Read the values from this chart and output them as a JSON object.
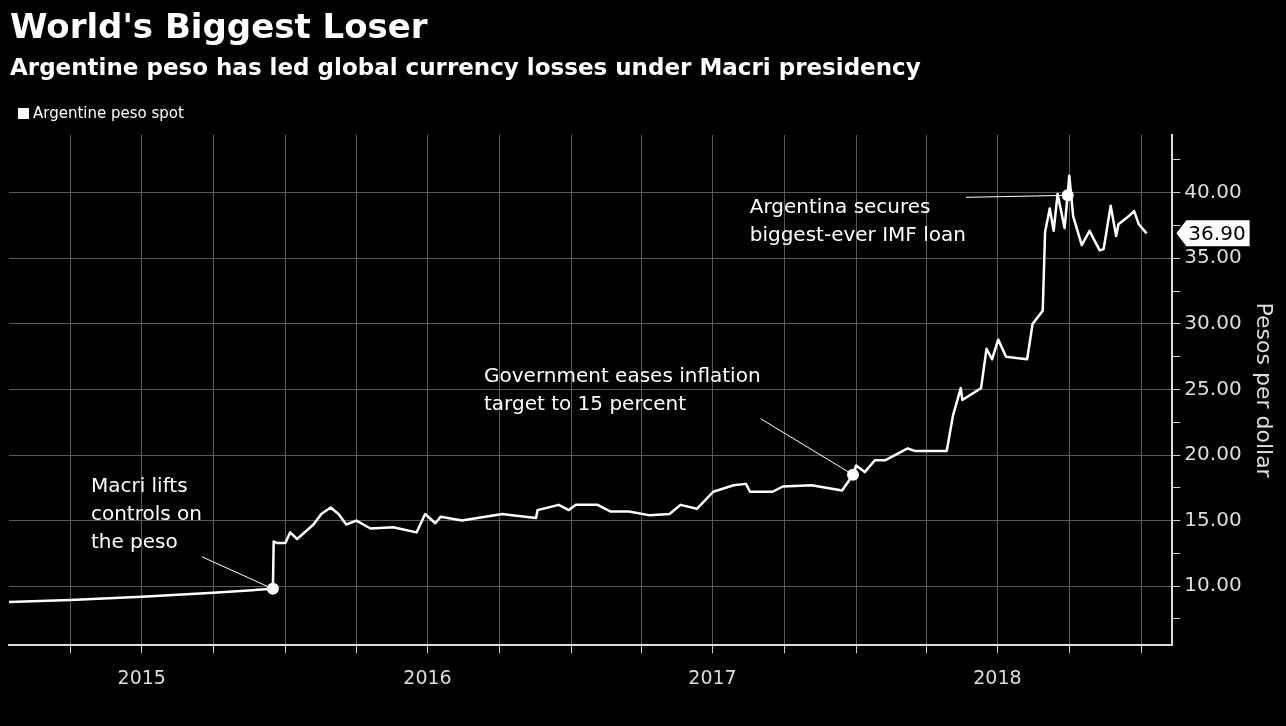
{
  "chart_data": {
    "type": "line",
    "title": "World's Biggest Loser",
    "subtitle": "Argentine peso has led global currency losses under Macri presidency",
    "ylabel": "Pesos per dollar",
    "legend": "top left",
    "grid": true,
    "marker": "none",
    "line_style": "solid",
    "x": [
      "2015-01-12",
      "2015-04-01",
      "2015-07-01",
      "2015-10-01",
      "2015-12-16",
      "2015-12-17",
      "2015-12-21",
      "2016-01-01",
      "2016-01-07",
      "2016-01-16",
      "2016-02-06",
      "2016-02-16",
      "2016-02-28",
      "2016-03-09",
      "2016-03-19",
      "2016-04-01",
      "2016-04-19",
      "2016-05-18",
      "2016-06-17",
      "2016-06-28",
      "2016-07-11",
      "2016-07-18",
      "2016-08-14",
      "2016-10-05",
      "2016-11-17",
      "2016-11-19",
      "2016-12-16",
      "2016-12-29",
      "2017-01-07",
      "2017-02-04",
      "2017-02-20",
      "2017-03-16",
      "2017-04-12",
      "2017-05-07",
      "2017-05-21",
      "2017-06-11",
      "2017-07-02",
      "2017-07-28",
      "2017-08-13",
      "2017-08-18",
      "2017-09-16",
      "2017-09-29",
      "2017-11-05",
      "2017-12-14",
      "2017-12-28",
      "2018-01-01",
      "2018-01-12",
      "2018-01-25",
      "2018-02-07",
      "2018-03-08",
      "2018-03-18",
      "2018-04-27",
      "2018-05-05",
      "2018-05-15",
      "2018-05-17",
      "2018-06-10",
      "2018-06-17",
      "2018-06-24",
      "2018-07-02",
      "2018-07-12",
      "2018-08-08",
      "2018-08-15",
      "2018-08-28",
      "2018-08-31",
      "2018-09-06",
      "2018-09-11",
      "2018-09-16",
      "2018-09-25",
      "2018-10-01",
      "2018-10-06",
      "2018-10-17",
      "2018-10-27",
      "2018-11-01",
      "2018-11-09",
      "2018-11-14",
      "2018-11-23",
      "2018-11-30",
      "2018-12-03",
      "2018-12-16",
      "2018-12-23",
      "2018-12-29",
      "2019-01-08"
    ],
    "series": [
      {
        "name": "Argentine peso spot",
        "color": "#ffffff",
        "values": [
          8.8,
          8.95,
          9.2,
          9.5,
          9.8,
          13.4,
          13.3,
          13.3,
          14.1,
          13.6,
          14.7,
          15.5,
          16.0,
          15.5,
          14.7,
          15.0,
          14.4,
          14.5,
          14.1,
          15.5,
          14.8,
          15.3,
          15.0,
          15.5,
          15.2,
          15.8,
          16.2,
          15.8,
          16.2,
          16.2,
          15.7,
          15.7,
          15.4,
          15.5,
          16.2,
          15.9,
          17.2,
          17.7,
          17.8,
          17.2,
          17.2,
          17.6,
          17.7,
          17.3,
          18.5,
          19.2,
          18.7,
          19.6,
          19.6,
          20.5,
          20.3,
          20.3,
          23.0,
          25.1,
          24.2,
          25.1,
          28.1,
          27.3,
          28.8,
          27.5,
          27.3,
          30.0,
          31.0,
          37.0,
          38.8,
          37.1,
          39.9,
          37.3,
          41.3,
          38.2,
          36.0,
          37.1,
          36.5,
          35.6,
          35.7,
          39.0,
          36.7,
          37.6,
          38.2,
          38.6,
          37.6,
          36.9
        ]
      }
    ],
    "xlim": [
      "2015-01-12",
      "2019-02-10"
    ],
    "xticks": [
      {
        "value": "2015-04-01",
        "label": null
      },
      {
        "value": "2015-07-01",
        "label": "2015"
      },
      {
        "value": "2015-10-01",
        "label": null
      },
      {
        "value": "2016-01-01",
        "label": null
      },
      {
        "value": "2016-04-01",
        "label": null
      },
      {
        "value": "2016-07-01",
        "label": "2016"
      },
      {
        "value": "2016-10-01",
        "label": null
      },
      {
        "value": "2017-01-01",
        "label": null
      },
      {
        "value": "2017-04-01",
        "label": null
      },
      {
        "value": "2017-07-01",
        "label": "2017"
      },
      {
        "value": "2017-10-01",
        "label": null
      },
      {
        "value": "2018-01-01",
        "label": null
      },
      {
        "value": "2018-04-01",
        "label": null
      },
      {
        "value": "2018-07-01",
        "label": "2018"
      },
      {
        "value": "2018-10-01",
        "label": null
      },
      {
        "value": "2019-01-01",
        "label": null
      }
    ],
    "ylim": [
      5.5,
      44.4
    ],
    "yticks": [
      {
        "value": 7.5,
        "label": null
      },
      {
        "value": 10,
        "label": "10.00"
      },
      {
        "value": 12.5,
        "label": null
      },
      {
        "value": 15,
        "label": "15.00"
      },
      {
        "value": 17.5,
        "label": null
      },
      {
        "value": 20,
        "label": "20.00"
      },
      {
        "value": 22.5,
        "label": null
      },
      {
        "value": 25,
        "label": "25.00"
      },
      {
        "value": 27.5,
        "label": null
      },
      {
        "value": 30,
        "label": "30.00"
      },
      {
        "value": 32.5,
        "label": null
      },
      {
        "value": 35,
        "label": "35.00"
      },
      {
        "value": 37.5,
        "label": null
      },
      {
        "value": 40,
        "label": "40.00"
      },
      {
        "value": 42.5,
        "label": null
      }
    ],
    "annotations": [
      {
        "text": "Macri lifts controls on the peso",
        "x": "2015-12-16",
        "y": 9.8
      },
      {
        "text": "Government eases inflation target to 15 percent",
        "x": "2017-12-28",
        "y": 18.5
      },
      {
        "text": "Argentina secures biggest-ever IMF loan",
        "x": "2018-09-29",
        "y": 39.8
      },
      {
        "text": "36.90",
        "x": "2019-01-08",
        "y": 36.9
      }
    ]
  }
}
